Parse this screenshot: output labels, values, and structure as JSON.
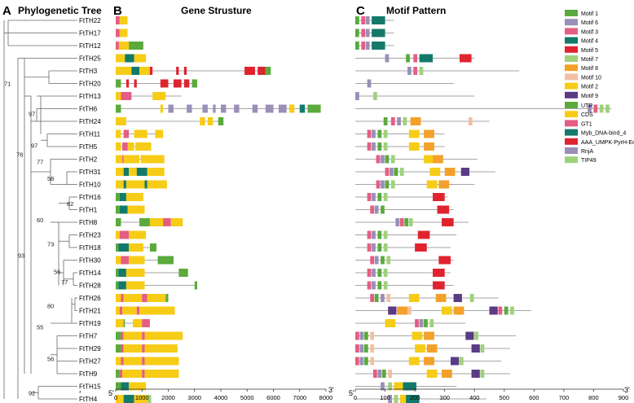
{
  "panels": {
    "A": {
      "letter": "A",
      "title": "Phylogenetic Tree"
    },
    "B": {
      "letter": "B",
      "title": "Gene Strusture"
    },
    "C": {
      "letter": "C",
      "title": "Motif Pattern"
    }
  },
  "genes": [
    "FtTH22",
    "FtTH17",
    "FtTH12",
    "FtTH25",
    "FtTH3",
    "FtTH20",
    "FtTH13",
    "FtTH6",
    "FtTH24",
    "FtTH11",
    "FtTH5",
    "FtTH2",
    "FtTH31",
    "FtTH10",
    "FtTH16",
    "FtTH1",
    "FtTH8",
    "FtTH23",
    "FtTH18",
    "FtTH30",
    "FtTH14",
    "FtTH28",
    "FtTH26",
    "FtTH21",
    "FtTH19",
    "FtTH7",
    "FtTH29",
    "FtTH27",
    "FtTH9",
    "FtTH15",
    "FtTH4"
  ],
  "bootstrap": [
    {
      "value": "71",
      "row": 5.0
    },
    {
      "value": "78",
      "row": 10.6
    },
    {
      "value": "97",
      "row": 9.9
    },
    {
      "value": "97",
      "row": 7.4
    },
    {
      "value": "77",
      "row": 11.2
    },
    {
      "value": "58",
      "row": 12.5
    },
    {
      "value": "82",
      "row": 14.5
    },
    {
      "value": "60",
      "row": 15.8
    },
    {
      "value": "73",
      "row": 17.7
    },
    {
      "value": "56",
      "row": 19.9
    },
    {
      "value": "77",
      "row": 20.7
    },
    {
      "value": "93",
      "row": 18.6
    },
    {
      "value": "80",
      "row": 22.6
    },
    {
      "value": "55",
      "row": 24.3
    },
    {
      "value": "56",
      "row": 26.8
    },
    {
      "value": "92",
      "row": 29.5
    }
  ],
  "motif_legend": [
    {
      "label": "Motif 1",
      "color": "#5aaa3c"
    },
    {
      "label": "Motif 6",
      "color": "#9a8fb8"
    },
    {
      "label": "Motif 3",
      "color": "#e55d83"
    },
    {
      "label": "Motif 4",
      "color": "#137a6a"
    },
    {
      "label": "Motif 5",
      "color": "#e0232f"
    },
    {
      "label": "Motif 7",
      "color": "#9fd17a"
    },
    {
      "label": "Motif 8",
      "color": "#f3a12a"
    },
    {
      "label": "Motif 10",
      "color": "#f2c0a0"
    },
    {
      "label": "Motif 2",
      "color": "#f6cc16"
    },
    {
      "label": "Motif 9",
      "color": "#5a3b84"
    }
  ],
  "structure_legend": [
    {
      "label": "UTR",
      "color": "#5aaa3c"
    },
    {
      "label": "CDS",
      "color": "#f6cc16"
    },
    {
      "label": "GT1",
      "color": "#e55d83"
    },
    {
      "label": "Myb_DNA-bind_4",
      "color": "#137a6a"
    },
    {
      "label": "AAA_UMPK-PyrH-Ec",
      "color": "#e0232f"
    },
    {
      "label": "RnjA",
      "color": "#9a8fb8"
    },
    {
      "label": "TIP49",
      "color": "#9fd17a"
    }
  ],
  "gene_axis": {
    "ticks": [
      "0",
      "1000",
      "2000",
      "3000",
      "4000",
      "5000",
      "6000",
      "7000",
      "8000"
    ],
    "left_label": "5'",
    "right_label": "3'",
    "max": 8000
  },
  "motif_axis": {
    "ticks": [
      "0",
      "100",
      "200",
      "300",
      "400",
      "500",
      "600",
      "700",
      "800",
      "900"
    ],
    "left_label": "5'",
    "right_label": "3'",
    "max": 900
  },
  "star_mark": "*",
  "colors": {
    "utr": "#5aaa3c",
    "cds": "#f6cc16",
    "gt1": "#e55d83",
    "myb": "#137a6a",
    "aaa": "#e0232f",
    "rnja": "#9a8fb8",
    "tip49": "#9fd17a",
    "line": "#888888"
  }
}
